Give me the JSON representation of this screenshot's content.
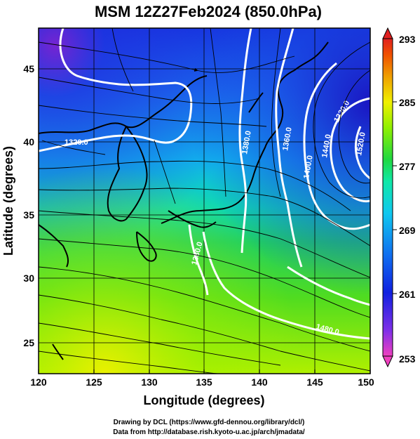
{
  "title": "MSM 12Z27Feb2024 (850.0hPa)",
  "xlabel": "Longitude (degrees)",
  "ylabel": "Latitude  (degrees)",
  "credits": [
    "Drawing by DCL (https://www.gfd-dennou.org/library/dcl/)",
    "Data from http://database.rish.kyoto-u.ac.jp/arch/jmadata/"
  ],
  "map": {
    "lon_range": [
      120,
      150
    ],
    "lat_range": [
      22.5,
      47.5
    ],
    "x_ticks": [
      "120",
      "125",
      "130",
      "135",
      "140",
      "145",
      "150"
    ],
    "y_ticks": [
      "25",
      "30",
      "35",
      "40",
      "45"
    ],
    "field": "temperature (K) with geopotential height contours (m) and wind streamlines",
    "contour_labels": [
      "1320.0",
      "1380.0",
      "1360.0",
      "1400.0",
      "1440.0",
      "1320.0",
      "1480.0",
      "1380.0",
      "1520.0"
    ]
  },
  "colorbar": {
    "ticks": [
      "293",
      "285",
      "277",
      "269",
      "261",
      "253"
    ],
    "range": [
      253,
      293
    ],
    "colors": [
      "#e040c0",
      "#7a20e0",
      "#1030e0",
      "#1080f0",
      "#10d0f0",
      "#10f0a0",
      "#20e020",
      "#a0f000",
      "#f0e000",
      "#f09000",
      "#f04000",
      "#e02020"
    ]
  }
}
